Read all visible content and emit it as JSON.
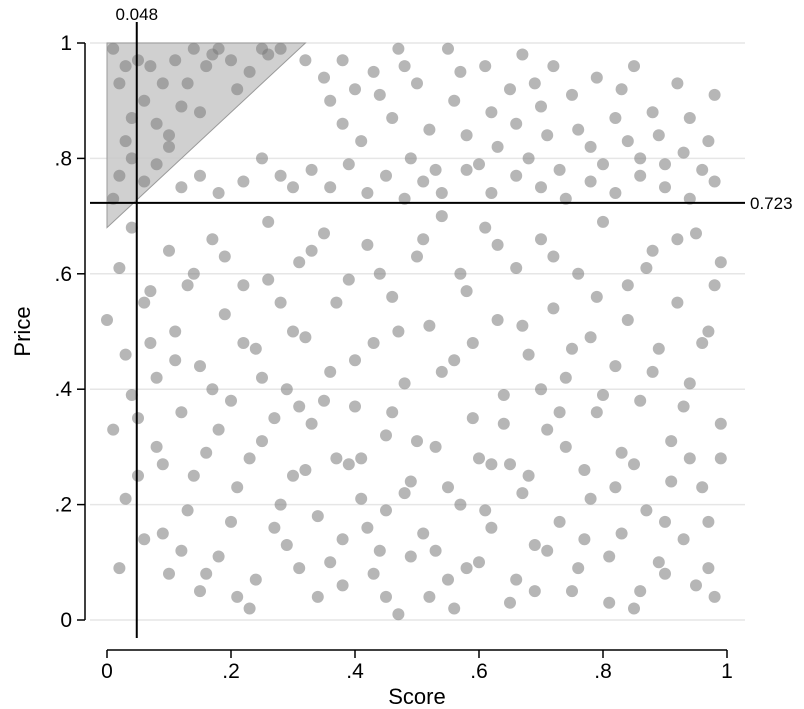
{
  "chart_data": {
    "type": "scatter",
    "xlabel": "Score",
    "ylabel": "Price",
    "xlim": [
      0,
      1
    ],
    "ylim": [
      0,
      1
    ],
    "x_ticks": [
      0,
      0.2,
      0.4,
      0.6,
      0.8,
      1
    ],
    "x_tick_labels": [
      "0",
      ".2",
      ".4",
      ".6",
      ".8",
      "1"
    ],
    "y_ticks": [
      0,
      0.2,
      0.4,
      0.6,
      0.8,
      1
    ],
    "y_tick_labels": [
      "0",
      ".2",
      ".4",
      ".6",
      ".8",
      "1"
    ],
    "grid": "horizontal",
    "reference_lines": {
      "vertical": {
        "x": 0.048,
        "label": "0.048"
      },
      "horizontal": {
        "y": 0.723,
        "label": "0.723"
      }
    },
    "shaded_region": {
      "type": "triangle",
      "vertices": [
        [
          0,
          1
        ],
        [
          0.32,
          1
        ],
        [
          0,
          0.68
        ]
      ],
      "color": "#c8c8c8"
    },
    "point_color": "#7a7a7a",
    "point_opacity": 0.55,
    "points": [
      [
        0.01,
        0.99
      ],
      [
        0.02,
        0.93
      ],
      [
        0.03,
        0.83
      ],
      [
        0.04,
        0.87
      ],
      [
        0.05,
        0.97
      ],
      [
        0.06,
        0.9
      ],
      [
        0.07,
        0.96
      ],
      [
        0.08,
        0.86
      ],
      [
        0.1,
        0.84
      ],
      [
        0.11,
        0.97
      ],
      [
        0.12,
        0.89
      ],
      [
        0.13,
        0.93
      ],
      [
        0.14,
        0.99
      ],
      [
        0.15,
        0.88
      ],
      [
        0.17,
        0.98
      ],
      [
        0.18,
        0.99
      ],
      [
        0.2,
        0.97
      ],
      [
        0.23,
        0.95
      ],
      [
        0.25,
        0.99
      ],
      [
        0.26,
        0.98
      ],
      [
        0.28,
        0.99
      ],
      [
        0.03,
        0.96
      ],
      [
        0.09,
        0.93
      ],
      [
        0.16,
        0.96
      ],
      [
        0.21,
        0.92
      ],
      [
        0.01,
        0.73
      ],
      [
        0.02,
        0.77
      ],
      [
        0.04,
        0.8
      ],
      [
        0.06,
        0.76
      ],
      [
        0.08,
        0.79
      ],
      [
        0.1,
        0.82
      ],
      [
        0.12,
        0.75
      ],
      [
        0.15,
        0.77
      ],
      [
        0.18,
        0.74
      ],
      [
        0.22,
        0.76
      ],
      [
        0.25,
        0.8
      ],
      [
        0.28,
        0.77
      ],
      [
        0.3,
        0.75
      ],
      [
        0.32,
        0.97
      ],
      [
        0.35,
        0.94
      ],
      [
        0.36,
        0.9
      ],
      [
        0.38,
        0.86
      ],
      [
        0.38,
        0.97
      ],
      [
        0.4,
        0.92
      ],
      [
        0.41,
        0.83
      ],
      [
        0.43,
        0.95
      ],
      [
        0.44,
        0.91
      ],
      [
        0.46,
        0.87
      ],
      [
        0.47,
        0.99
      ],
      [
        0.48,
        0.96
      ],
      [
        0.49,
        0.8
      ],
      [
        0.5,
        0.93
      ],
      [
        0.52,
        0.85
      ],
      [
        0.53,
        0.78
      ],
      [
        0.55,
        0.99
      ],
      [
        0.56,
        0.9
      ],
      [
        0.57,
        0.95
      ],
      [
        0.58,
        0.84
      ],
      [
        0.6,
        0.79
      ],
      [
        0.61,
        0.96
      ],
      [
        0.62,
        0.88
      ],
      [
        0.63,
        0.82
      ],
      [
        0.65,
        0.92
      ],
      [
        0.66,
        0.86
      ],
      [
        0.67,
        0.98
      ],
      [
        0.68,
        0.8
      ],
      [
        0.69,
        0.93
      ],
      [
        0.7,
        0.89
      ],
      [
        0.71,
        0.84
      ],
      [
        0.72,
        0.96
      ],
      [
        0.73,
        0.78
      ],
      [
        0.75,
        0.91
      ],
      [
        0.76,
        0.85
      ],
      [
        0.78,
        0.82
      ],
      [
        0.79,
        0.94
      ],
      [
        0.8,
        0.79
      ],
      [
        0.82,
        0.87
      ],
      [
        0.83,
        0.92
      ],
      [
        0.84,
        0.83
      ],
      [
        0.85,
        0.96
      ],
      [
        0.86,
        0.8
      ],
      [
        0.88,
        0.88
      ],
      [
        0.89,
        0.84
      ],
      [
        0.9,
        0.79
      ],
      [
        0.92,
        0.93
      ],
      [
        0.93,
        0.81
      ],
      [
        0.94,
        0.87
      ],
      [
        0.96,
        0.78
      ],
      [
        0.97,
        0.83
      ],
      [
        0.98,
        0.91
      ],
      [
        0.33,
        0.78
      ],
      [
        0.36,
        0.75
      ],
      [
        0.39,
        0.79
      ],
      [
        0.42,
        0.74
      ],
      [
        0.45,
        0.77
      ],
      [
        0.48,
        0.73
      ],
      [
        0.51,
        0.76
      ],
      [
        0.54,
        0.74
      ],
      [
        0.58,
        0.78
      ],
      [
        0.62,
        0.74
      ],
      [
        0.66,
        0.77
      ],
      [
        0.7,
        0.75
      ],
      [
        0.74,
        0.73
      ],
      [
        0.78,
        0.76
      ],
      [
        0.82,
        0.74
      ],
      [
        0.86,
        0.77
      ],
      [
        0.9,
        0.75
      ],
      [
        0.94,
        0.73
      ],
      [
        0.98,
        0.76
      ],
      [
        0.0,
        0.52
      ],
      [
        0.01,
        0.33
      ],
      [
        0.02,
        0.61
      ],
      [
        0.03,
        0.21
      ],
      [
        0.03,
        0.46
      ],
      [
        0.04,
        0.68
      ],
      [
        0.05,
        0.35
      ],
      [
        0.06,
        0.14
      ],
      [
        0.07,
        0.57
      ],
      [
        0.08,
        0.42
      ],
      [
        0.09,
        0.27
      ],
      [
        0.1,
        0.64
      ],
      [
        0.1,
        0.08
      ],
      [
        0.11,
        0.5
      ],
      [
        0.12,
        0.36
      ],
      [
        0.13,
        0.19
      ],
      [
        0.14,
        0.6
      ],
      [
        0.15,
        0.44
      ],
      [
        0.15,
        0.05
      ],
      [
        0.16,
        0.29
      ],
      [
        0.17,
        0.66
      ],
      [
        0.18,
        0.11
      ],
      [
        0.19,
        0.53
      ],
      [
        0.2,
        0.38
      ],
      [
        0.21,
        0.23
      ],
      [
        0.22,
        0.58
      ],
      [
        0.23,
        0.02
      ],
      [
        0.24,
        0.47
      ],
      [
        0.25,
        0.31
      ],
      [
        0.26,
        0.69
      ],
      [
        0.27,
        0.16
      ],
      [
        0.28,
        0.55
      ],
      [
        0.29,
        0.4
      ],
      [
        0.3,
        0.25
      ],
      [
        0.31,
        0.62
      ],
      [
        0.31,
        0.09
      ],
      [
        0.32,
        0.49
      ],
      [
        0.33,
        0.34
      ],
      [
        0.34,
        0.18
      ],
      [
        0.35,
        0.67
      ],
      [
        0.36,
        0.43
      ],
      [
        0.37,
        0.28
      ],
      [
        0.38,
        0.06
      ],
      [
        0.39,
        0.59
      ],
      [
        0.4,
        0.37
      ],
      [
        0.41,
        0.21
      ],
      [
        0.42,
        0.65
      ],
      [
        0.43,
        0.48
      ],
      [
        0.44,
        0.12
      ],
      [
        0.45,
        0.32
      ],
      [
        0.46,
        0.56
      ],
      [
        0.47,
        0.01
      ],
      [
        0.48,
        0.41
      ],
      [
        0.49,
        0.24
      ],
      [
        0.5,
        0.63
      ],
      [
        0.51,
        0.15
      ],
      [
        0.52,
        0.51
      ],
      [
        0.53,
        0.3
      ],
      [
        0.54,
        0.7
      ],
      [
        0.55,
        0.07
      ],
      [
        0.56,
        0.45
      ],
      [
        0.57,
        0.2
      ],
      [
        0.58,
        0.57
      ],
      [
        0.59,
        0.35
      ],
      [
        0.6,
        0.1
      ],
      [
        0.61,
        0.68
      ],
      [
        0.62,
        0.27
      ],
      [
        0.63,
        0.52
      ],
      [
        0.64,
        0.39
      ],
      [
        0.65,
        0.03
      ],
      [
        0.66,
        0.61
      ],
      [
        0.67,
        0.22
      ],
      [
        0.68,
        0.46
      ],
      [
        0.69,
        0.13
      ],
      [
        0.7,
        0.66
      ],
      [
        0.71,
        0.33
      ],
      [
        0.72,
        0.54
      ],
      [
        0.73,
        0.17
      ],
      [
        0.74,
        0.42
      ],
      [
        0.75,
        0.05
      ],
      [
        0.76,
        0.6
      ],
      [
        0.77,
        0.26
      ],
      [
        0.78,
        0.49
      ],
      [
        0.79,
        0.36
      ],
      [
        0.8,
        0.69
      ],
      [
        0.81,
        0.11
      ],
      [
        0.82,
        0.44
      ],
      [
        0.83,
        0.29
      ],
      [
        0.84,
        0.58
      ],
      [
        0.85,
        0.02
      ],
      [
        0.86,
        0.38
      ],
      [
        0.87,
        0.19
      ],
      [
        0.88,
        0.64
      ],
      [
        0.89,
        0.47
      ],
      [
        0.9,
        0.08
      ],
      [
        0.91,
        0.31
      ],
      [
        0.92,
        0.55
      ],
      [
        0.93,
        0.14
      ],
      [
        0.94,
        0.41
      ],
      [
        0.95,
        0.67
      ],
      [
        0.96,
        0.23
      ],
      [
        0.97,
        0.5
      ],
      [
        0.98,
        0.04
      ],
      [
        0.99,
        0.34
      ],
      [
        0.99,
        0.62
      ],
      [
        0.02,
        0.09
      ],
      [
        0.04,
        0.39
      ],
      [
        0.06,
        0.55
      ],
      [
        0.08,
        0.3
      ],
      [
        0.09,
        0.15
      ],
      [
        0.11,
        0.45
      ],
      [
        0.13,
        0.58
      ],
      [
        0.14,
        0.25
      ],
      [
        0.16,
        0.08
      ],
      [
        0.17,
        0.4
      ],
      [
        0.19,
        0.63
      ],
      [
        0.2,
        0.17
      ],
      [
        0.22,
        0.48
      ],
      [
        0.23,
        0.28
      ],
      [
        0.24,
        0.07
      ],
      [
        0.26,
        0.59
      ],
      [
        0.27,
        0.35
      ],
      [
        0.29,
        0.13
      ],
      [
        0.3,
        0.5
      ],
      [
        0.32,
        0.26
      ],
      [
        0.33,
        0.64
      ],
      [
        0.34,
        0.04
      ],
      [
        0.35,
        0.38
      ],
      [
        0.37,
        0.55
      ],
      [
        0.38,
        0.14
      ],
      [
        0.4,
        0.45
      ],
      [
        0.41,
        0.28
      ],
      [
        0.43,
        0.08
      ],
      [
        0.44,
        0.6
      ],
      [
        0.45,
        0.19
      ],
      [
        0.46,
        0.36
      ],
      [
        0.47,
        0.5
      ],
      [
        0.49,
        0.11
      ],
      [
        0.5,
        0.31
      ],
      [
        0.51,
        0.66
      ],
      [
        0.52,
        0.04
      ],
      [
        0.54,
        0.43
      ],
      [
        0.55,
        0.23
      ],
      [
        0.57,
        0.6
      ],
      [
        0.58,
        0.09
      ],
      [
        0.59,
        0.48
      ],
      [
        0.6,
        0.28
      ],
      [
        0.62,
        0.16
      ],
      [
        0.63,
        0.65
      ],
      [
        0.64,
        0.34
      ],
      [
        0.66,
        0.07
      ],
      [
        0.67,
        0.51
      ],
      [
        0.68,
        0.25
      ],
      [
        0.7,
        0.4
      ],
      [
        0.71,
        0.12
      ],
      [
        0.72,
        0.63
      ],
      [
        0.74,
        0.3
      ],
      [
        0.75,
        0.47
      ],
      [
        0.76,
        0.09
      ],
      [
        0.78,
        0.21
      ],
      [
        0.79,
        0.56
      ],
      [
        0.8,
        0.39
      ],
      [
        0.81,
        0.03
      ],
      [
        0.83,
        0.15
      ],
      [
        0.84,
        0.52
      ],
      [
        0.85,
        0.27
      ],
      [
        0.87,
        0.61
      ],
      [
        0.88,
        0.43
      ],
      [
        0.89,
        0.1
      ],
      [
        0.91,
        0.24
      ],
      [
        0.92,
        0.66
      ],
      [
        0.93,
        0.37
      ],
      [
        0.95,
        0.06
      ],
      [
        0.96,
        0.48
      ],
      [
        0.97,
        0.17
      ],
      [
        0.98,
        0.58
      ],
      [
        0.99,
        0.28
      ],
      [
        0.05,
        0.25
      ],
      [
        0.07,
        0.48
      ],
      [
        0.12,
        0.12
      ],
      [
        0.18,
        0.33
      ],
      [
        0.21,
        0.04
      ],
      [
        0.25,
        0.42
      ],
      [
        0.28,
        0.2
      ],
      [
        0.31,
        0.37
      ],
      [
        0.36,
        0.1
      ],
      [
        0.39,
        0.27
      ],
      [
        0.42,
        0.16
      ],
      [
        0.45,
        0.04
      ],
      [
        0.48,
        0.22
      ],
      [
        0.53,
        0.12
      ],
      [
        0.56,
        0.02
      ],
      [
        0.61,
        0.19
      ],
      [
        0.65,
        0.27
      ],
      [
        0.69,
        0.05
      ],
      [
        0.73,
        0.36
      ],
      [
        0.77,
        0.14
      ],
      [
        0.82,
        0.23
      ],
      [
        0.86,
        0.05
      ],
      [
        0.9,
        0.17
      ],
      [
        0.94,
        0.28
      ],
      [
        0.97,
        0.09
      ]
    ]
  }
}
